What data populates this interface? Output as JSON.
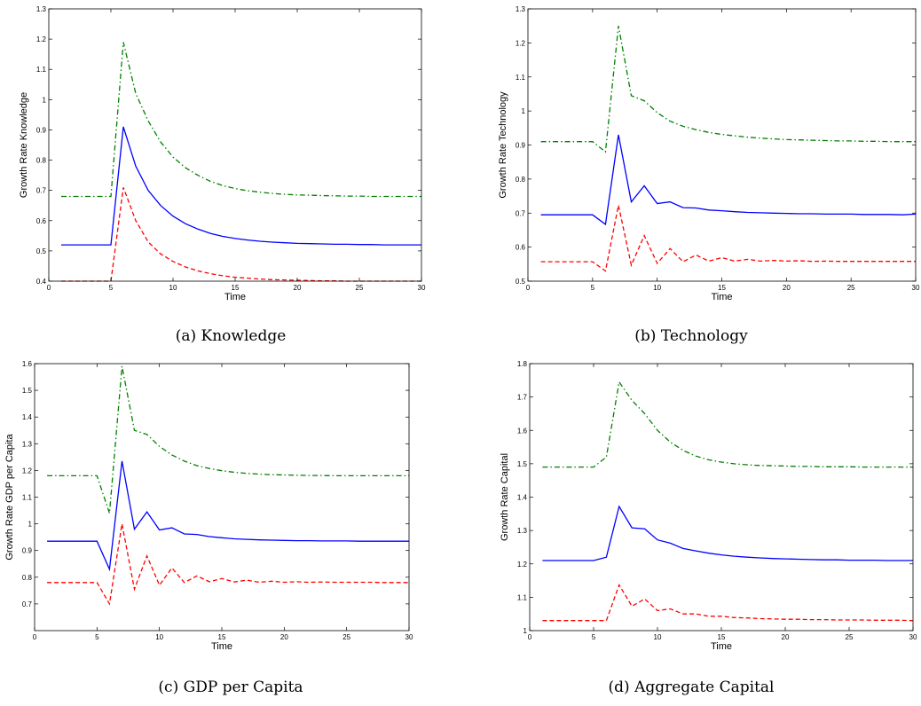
{
  "chart_data": [
    {
      "type": "line",
      "caption": "(a)  Knowledge",
      "xlabel": "Time",
      "ylabel": "Growth Rate Knowledge",
      "xlim": [
        0,
        30
      ],
      "ylim": [
        0.4,
        1.3
      ],
      "xticks": [
        0,
        5,
        10,
        15,
        20,
        25,
        30
      ],
      "yticks": [
        0.4,
        0.5,
        0.6,
        0.7,
        0.8,
        0.9,
        1,
        1.1,
        1.2,
        1.3
      ],
      "x": [
        1,
        2,
        3,
        4,
        5,
        6,
        7,
        8,
        9,
        10,
        11,
        12,
        13,
        14,
        15,
        16,
        17,
        18,
        19,
        20,
        21,
        22,
        23,
        24,
        25,
        26,
        27,
        28,
        29,
        30
      ],
      "series": [
        {
          "color": "#008000",
          "dash": "dashdot",
          "values": [
            0.68,
            0.68,
            0.68,
            0.68,
            0.68,
            1.19,
            1.02,
            0.93,
            0.86,
            0.81,
            0.775,
            0.75,
            0.73,
            0.716,
            0.706,
            0.699,
            0.694,
            0.69,
            0.687,
            0.685,
            0.684,
            0.683,
            0.682,
            0.681,
            0.681,
            0.68,
            0.68,
            0.68,
            0.68,
            0.68
          ]
        },
        {
          "color": "#0000ff",
          "dash": "solid",
          "values": [
            0.52,
            0.52,
            0.52,
            0.52,
            0.52,
            0.91,
            0.78,
            0.7,
            0.65,
            0.615,
            0.59,
            0.572,
            0.558,
            0.548,
            0.541,
            0.536,
            0.532,
            0.529,
            0.527,
            0.525,
            0.524,
            0.523,
            0.522,
            0.522,
            0.521,
            0.521,
            0.52,
            0.52,
            0.52,
            0.52
          ]
        },
        {
          "color": "#ff0000",
          "dash": "dashed",
          "values": [
            0.4,
            0.4,
            0.4,
            0.4,
            0.4,
            0.71,
            0.6,
            0.53,
            0.49,
            0.465,
            0.447,
            0.434,
            0.425,
            0.418,
            0.413,
            0.41,
            0.407,
            0.405,
            0.404,
            0.403,
            0.402,
            0.401,
            0.401,
            0.4,
            0.4,
            0.4,
            0.4,
            0.4,
            0.4,
            0.4
          ]
        }
      ]
    },
    {
      "type": "line",
      "caption": "(b)  Technology",
      "xlabel": "Time",
      "ylabel": "Growth Rate Technology",
      "xlim": [
        0,
        30
      ],
      "ylim": [
        0.5,
        1.3
      ],
      "xticks": [
        0,
        5,
        10,
        15,
        20,
        25,
        30
      ],
      "yticks": [
        0.5,
        0.6,
        0.7,
        0.8,
        0.9,
        1,
        1.1,
        1.2,
        1.3
      ],
      "x": [
        1,
        2,
        3,
        4,
        5,
        6,
        7,
        8,
        9,
        10,
        11,
        12,
        13,
        14,
        15,
        16,
        17,
        18,
        19,
        20,
        21,
        22,
        23,
        24,
        25,
        26,
        27,
        28,
        29,
        30
      ],
      "series": [
        {
          "color": "#008000",
          "dash": "dashdot",
          "values": [
            0.91,
            0.91,
            0.91,
            0.91,
            0.91,
            0.88,
            1.25,
            1.045,
            1.03,
            0.995,
            0.97,
            0.955,
            0.945,
            0.937,
            0.931,
            0.927,
            0.923,
            0.92,
            0.918,
            0.916,
            0.915,
            0.914,
            0.913,
            0.912,
            0.912,
            0.911,
            0.911,
            0.91,
            0.91,
            0.91
          ]
        },
        {
          "color": "#0000ff",
          "dash": "solid",
          "values": [
            0.695,
            0.695,
            0.695,
            0.695,
            0.695,
            0.667,
            0.93,
            0.733,
            0.78,
            0.728,
            0.733,
            0.716,
            0.715,
            0.709,
            0.707,
            0.704,
            0.702,
            0.701,
            0.7,
            0.699,
            0.698,
            0.698,
            0.697,
            0.697,
            0.697,
            0.696,
            0.696,
            0.696,
            0.695,
            0.697
          ]
        },
        {
          "color": "#ff0000",
          "dash": "dashed",
          "values": [
            0.557,
            0.557,
            0.557,
            0.557,
            0.557,
            0.53,
            0.723,
            0.547,
            0.634,
            0.552,
            0.596,
            0.557,
            0.577,
            0.559,
            0.569,
            0.559,
            0.564,
            0.559,
            0.561,
            0.559,
            0.56,
            0.558,
            0.559,
            0.558,
            0.558,
            0.558,
            0.558,
            0.558,
            0.558,
            0.558
          ]
        }
      ]
    },
    {
      "type": "line",
      "caption": "(c)  GDP per Capita",
      "xlabel": "Time",
      "ylabel": "Growth Rate GDP per Capita",
      "xlim": [
        0,
        30
      ],
      "ylim": [
        0.6,
        1.6
      ],
      "xticks": [
        0,
        5,
        10,
        15,
        20,
        25,
        30
      ],
      "yticks": [
        0.7,
        0.8,
        0.9,
        1,
        1.1,
        1.2,
        1.3,
        1.4,
        1.5,
        1.6
      ],
      "x": [
        1,
        2,
        3,
        4,
        5,
        6,
        7,
        8,
        9,
        10,
        11,
        12,
        13,
        14,
        15,
        16,
        17,
        18,
        19,
        20,
        21,
        22,
        23,
        24,
        25,
        26,
        27,
        28,
        29,
        30
      ],
      "series": [
        {
          "color": "#008000",
          "dash": "dashdot",
          "values": [
            1.18,
            1.18,
            1.18,
            1.18,
            1.18,
            1.04,
            1.59,
            1.35,
            1.335,
            1.29,
            1.258,
            1.235,
            1.218,
            1.207,
            1.199,
            1.193,
            1.189,
            1.186,
            1.184,
            1.183,
            1.182,
            1.181,
            1.181,
            1.18,
            1.18,
            1.18,
            1.18,
            1.18,
            1.18,
            1.18
          ]
        },
        {
          "color": "#0000ff",
          "dash": "solid",
          "values": [
            0.935,
            0.935,
            0.935,
            0.935,
            0.935,
            0.83,
            1.235,
            0.98,
            1.045,
            0.977,
            0.985,
            0.962,
            0.96,
            0.952,
            0.948,
            0.944,
            0.942,
            0.94,
            0.939,
            0.938,
            0.937,
            0.937,
            0.936,
            0.936,
            0.936,
            0.935,
            0.935,
            0.935,
            0.935,
            0.935
          ]
        },
        {
          "color": "#ff0000",
          "dash": "dashed",
          "values": [
            0.78,
            0.78,
            0.78,
            0.78,
            0.78,
            0.7,
            1.0,
            0.755,
            0.88,
            0.77,
            0.835,
            0.78,
            0.805,
            0.783,
            0.795,
            0.782,
            0.789,
            0.781,
            0.785,
            0.781,
            0.783,
            0.781,
            0.782,
            0.781,
            0.781,
            0.781,
            0.781,
            0.78,
            0.78,
            0.78
          ]
        }
      ]
    },
    {
      "type": "line",
      "caption": "(d)  Aggregate Capital",
      "xlabel": "Time",
      "ylabel": "Growth Rate Capital",
      "xlim": [
        0,
        30
      ],
      "ylim": [
        1.0,
        1.8
      ],
      "xticks": [
        0,
        5,
        10,
        15,
        20,
        25,
        30
      ],
      "yticks": [
        1,
        1.1,
        1.2,
        1.3,
        1.4,
        1.5,
        1.6,
        1.7,
        1.8
      ],
      "x": [
        1,
        2,
        3,
        4,
        5,
        6,
        7,
        8,
        9,
        10,
        11,
        12,
        13,
        14,
        15,
        16,
        17,
        18,
        19,
        20,
        21,
        22,
        23,
        24,
        25,
        26,
        27,
        28,
        29,
        30
      ],
      "series": [
        {
          "color": "#008000",
          "dash": "dashdot",
          "values": [
            1.49,
            1.49,
            1.49,
            1.49,
            1.49,
            1.52,
            1.745,
            1.69,
            1.65,
            1.6,
            1.565,
            1.54,
            1.523,
            1.512,
            1.505,
            1.5,
            1.497,
            1.495,
            1.494,
            1.493,
            1.492,
            1.492,
            1.491,
            1.491,
            1.491,
            1.49,
            1.49,
            1.49,
            1.49,
            1.49
          ]
        },
        {
          "color": "#0000ff",
          "dash": "solid",
          "values": [
            1.21,
            1.21,
            1.21,
            1.21,
            1.21,
            1.22,
            1.372,
            1.308,
            1.305,
            1.272,
            1.262,
            1.246,
            1.239,
            1.232,
            1.227,
            1.223,
            1.22,
            1.218,
            1.216,
            1.215,
            1.214,
            1.213,
            1.212,
            1.212,
            1.211,
            1.211,
            1.211,
            1.21,
            1.21,
            1.21
          ]
        },
        {
          "color": "#ff0000",
          "dash": "dashed",
          "values": [
            1.03,
            1.03,
            1.03,
            1.03,
            1.03,
            1.03,
            1.137,
            1.073,
            1.095,
            1.06,
            1.065,
            1.05,
            1.05,
            1.043,
            1.043,
            1.039,
            1.038,
            1.036,
            1.035,
            1.034,
            1.034,
            1.033,
            1.033,
            1.032,
            1.032,
            1.032,
            1.031,
            1.031,
            1.031,
            1.03
          ]
        }
      ]
    }
  ]
}
